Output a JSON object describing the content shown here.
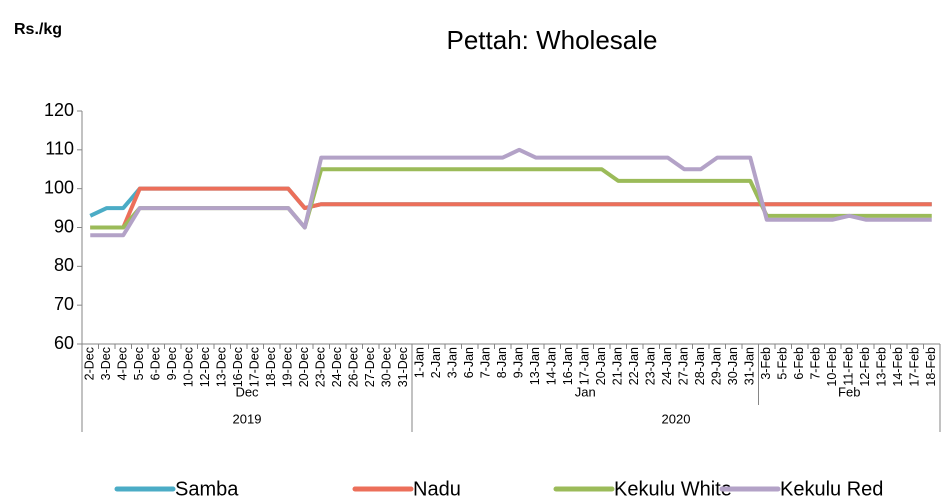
{
  "chart_data": {
    "type": "line",
    "title": "Pettah: Wholesale",
    "y_axis_label": "Rs./kg",
    "categories": [
      "2-Dec",
      "3-Dec",
      "4-Dec",
      "5-Dec",
      "6-Dec",
      "9-Dec",
      "10-Dec",
      "12-Dec",
      "13-Dec",
      "16-Dec",
      "17-Dec",
      "18-Dec",
      "19-Dec",
      "20-Dec",
      "23-Dec",
      "24-Dec",
      "26-Dec",
      "27-Dec",
      "30-Dec",
      "31-Dec",
      "1-Jan",
      "2-Jan",
      "3-Jan",
      "6-Jan",
      "7-Jan",
      "8-Jan",
      "9-Jan",
      "13-Jan",
      "14-Jan",
      "16-Jan",
      "17-Jan",
      "20-Jan",
      "21-Jan",
      "22-Jan",
      "23-Jan",
      "24-Jan",
      "27-Jan",
      "28-Jan",
      "29-Jan",
      "30-Jan",
      "31-Jan",
      "3-Feb",
      "5-Feb",
      "6-Feb",
      "7-Feb",
      "10-Feb",
      "11-Feb",
      "12-Feb",
      "13-Feb",
      "14-Feb",
      "17-Feb",
      "18-Feb"
    ],
    "month_groups": [
      {
        "label": "Dec",
        "count": 20
      },
      {
        "label": "Jan",
        "count": 21
      },
      {
        "label": "Feb",
        "count": 11
      }
    ],
    "year_groups": [
      {
        "label": "2019",
        "count": 20
      },
      {
        "label": "2020",
        "count": 32
      }
    ],
    "series": [
      {
        "name": "Samba",
        "color": "#4bacc6",
        "values": [
          93,
          95,
          95,
          100,
          100,
          100,
          100,
          100,
          100,
          100,
          100,
          100,
          100,
          95,
          96,
          96,
          96,
          96,
          96,
          96,
          96,
          96,
          96,
          96,
          96,
          96,
          96,
          96,
          96,
          96,
          96,
          96,
          96,
          96,
          96,
          96,
          96,
          96,
          96,
          96,
          96,
          96,
          96,
          96,
          96,
          96,
          96,
          96,
          96,
          96,
          96,
          96
        ]
      },
      {
        "name": "Nadu",
        "color": "#ec6f5a",
        "values": [
          90,
          90,
          90,
          100,
          100,
          100,
          100,
          100,
          100,
          100,
          100,
          100,
          100,
          95,
          96,
          96,
          96,
          96,
          96,
          96,
          96,
          96,
          96,
          96,
          96,
          96,
          96,
          96,
          96,
          96,
          96,
          96,
          96,
          96,
          96,
          96,
          96,
          96,
          96,
          96,
          96,
          96,
          96,
          96,
          96,
          96,
          96,
          96,
          96,
          96,
          96,
          96
        ]
      },
      {
        "name": "Kekulu White",
        "color": "#9bbb59",
        "values": [
          90,
          90,
          90,
          95,
          95,
          95,
          95,
          95,
          95,
          95,
          95,
          95,
          95,
          90,
          105,
          105,
          105,
          105,
          105,
          105,
          105,
          105,
          105,
          105,
          105,
          105,
          105,
          105,
          105,
          105,
          105,
          105,
          102,
          102,
          102,
          102,
          102,
          102,
          102,
          102,
          102,
          93,
          93,
          93,
          93,
          93,
          93,
          93,
          93,
          93,
          93,
          93
        ]
      },
      {
        "name": "Kekulu Red",
        "color": "#b3a2c7",
        "values": [
          88,
          88,
          88,
          95,
          95,
          95,
          95,
          95,
          95,
          95,
          95,
          95,
          95,
          90,
          108,
          108,
          108,
          108,
          108,
          108,
          108,
          108,
          108,
          108,
          108,
          108,
          110,
          108,
          108,
          108,
          108,
          108,
          108,
          108,
          108,
          108,
          105,
          105,
          108,
          108,
          108,
          92,
          92,
          92,
          92,
          92,
          93,
          92,
          92,
          92,
          92,
          92
        ]
      }
    ],
    "ylim": [
      60,
      120
    ],
    "yticks": [
      60,
      70,
      80,
      90,
      100,
      110,
      120
    ],
    "grid": false,
    "legend": "bottom"
  }
}
